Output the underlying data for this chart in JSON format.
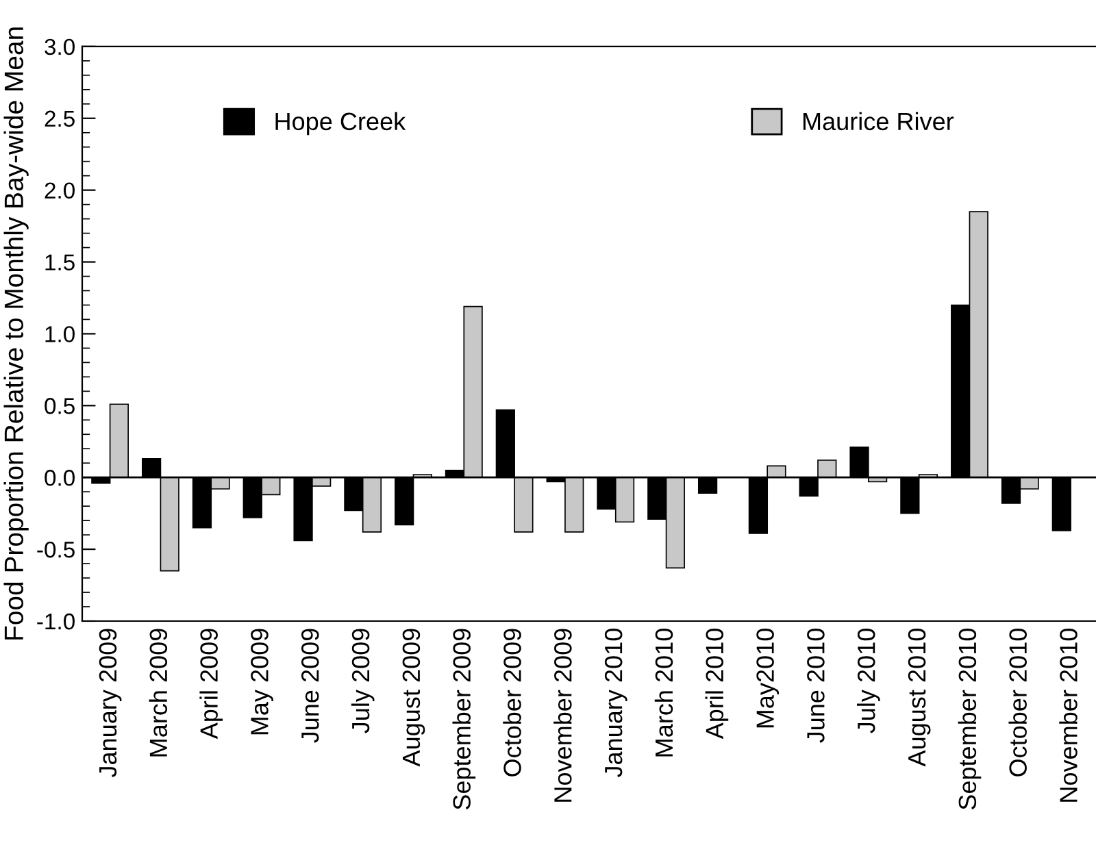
{
  "chart_data": {
    "type": "bar",
    "ylabel": "Food Proportion Relative to Monthly Bay-wide Mean",
    "categories": [
      "January 2009",
      "March 2009",
      "April 2009",
      "May 2009",
      "June 2009",
      "July 2009",
      "August 2009",
      "September 2009",
      "October 2009",
      "November 2009",
      "January 2010",
      "March 2010",
      "April 2010",
      "May2010",
      "June 2010",
      "July 2010",
      "August 2010",
      "September 2010",
      "October 2010",
      "November 2010"
    ],
    "series": [
      {
        "name": "Hope Creek",
        "color": "#000000",
        "values": [
          -0.04,
          0.13,
          -0.35,
          -0.28,
          -0.44,
          -0.23,
          -0.33,
          0.05,
          0.47,
          -0.03,
          -0.22,
          -0.29,
          -0.11,
          -0.39,
          -0.13,
          0.21,
          -0.25,
          1.2,
          -0.18,
          -0.37
        ]
      },
      {
        "name": "Maurice River",
        "color": "#c8c8c8",
        "values": [
          0.51,
          -0.65,
          -0.08,
          -0.12,
          -0.06,
          -0.38,
          0.02,
          1.19,
          -0.38,
          -0.38,
          -0.31,
          -0.63,
          null,
          0.08,
          0.12,
          -0.03,
          0.02,
          1.85,
          -0.08,
          null
        ]
      }
    ],
    "ylim": [
      -1.0,
      3.0
    ],
    "yticks": [
      {
        "value": -1.0,
        "label": "-1.0"
      },
      {
        "value": -0.5,
        "label": "-0.5"
      },
      {
        "value": 0.0,
        "label": "0.0"
      },
      {
        "value": 0.5,
        "label": "0.5"
      },
      {
        "value": 1.0,
        "label": "1.0"
      },
      {
        "value": 1.5,
        "label": "1.5"
      },
      {
        "value": 2.0,
        "label": "2.0"
      },
      {
        "value": 2.5,
        "label": "2.5"
      },
      {
        "value": 3.0,
        "label": "3.0"
      }
    ],
    "legend": "top"
  }
}
